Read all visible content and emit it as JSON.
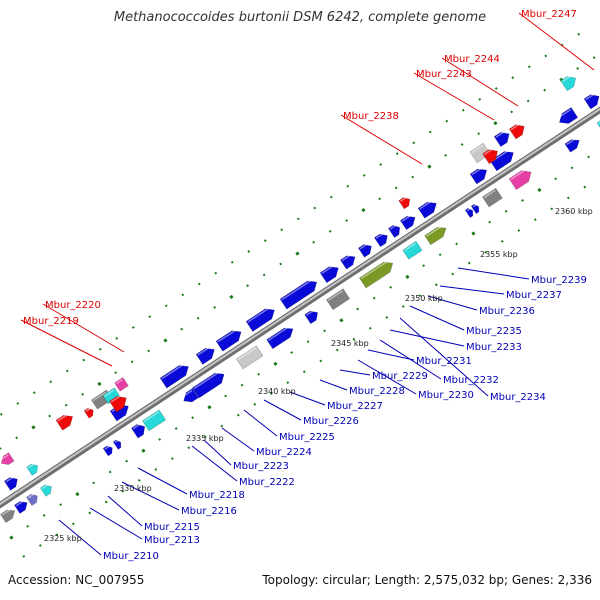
{
  "title": "Methanococcoides burtonii DSM 6242, complete genome",
  "footer": {
    "accession": "Accession: NC_007955",
    "topology": "Topology: circular; Length: 2,575,032 bp; Genes: 2,336"
  },
  "colors": {
    "cds_forward": "#0a0ad8",
    "cds_reverse_labeled": "#ee0a0a",
    "label_blue": "#0000b4",
    "label_red": "#dd0000",
    "rna_cyan": "#26d8d8",
    "olive": "#7a9a25",
    "gray": "#808080",
    "light_gray": "#c8c8c8",
    "magenta": "#e63fa3",
    "purple": "#7070c8",
    "backbone": "#888888",
    "ruler_tick": "#1a7a1a"
  },
  "ruler_labels": [
    "2325 kbp",
    "2330 kbp",
    "2335 kbp",
    "2340 kbp",
    "2345 kbp",
    "2350 kbp",
    "2355 kbp",
    "2360 kbp"
  ],
  "blue_labels": [
    "Mbur_2210",
    "Mbur_2213",
    "Mbur_2215",
    "Mbur_2216",
    "Mbur_2218",
    "Mbur_2222",
    "Mbur_2223",
    "Mbur_2224",
    "Mbur_2225",
    "Mbur_2226",
    "Mbur_2227",
    "Mbur_2228",
    "Mbur_2229",
    "Mbur_2230",
    "Mbur_2231",
    "Mbur_2232",
    "Mbur_2233",
    "Mbur_2234",
    "Mbur_2235",
    "Mbur_2236",
    "Mbur_2237",
    "Mbur_2239"
  ],
  "red_labels": [
    "Mbur_2219",
    "Mbur_2220",
    "Mbur_2238",
    "Mbur_2243",
    "Mbur_2244",
    "Mbur_2247"
  ]
}
